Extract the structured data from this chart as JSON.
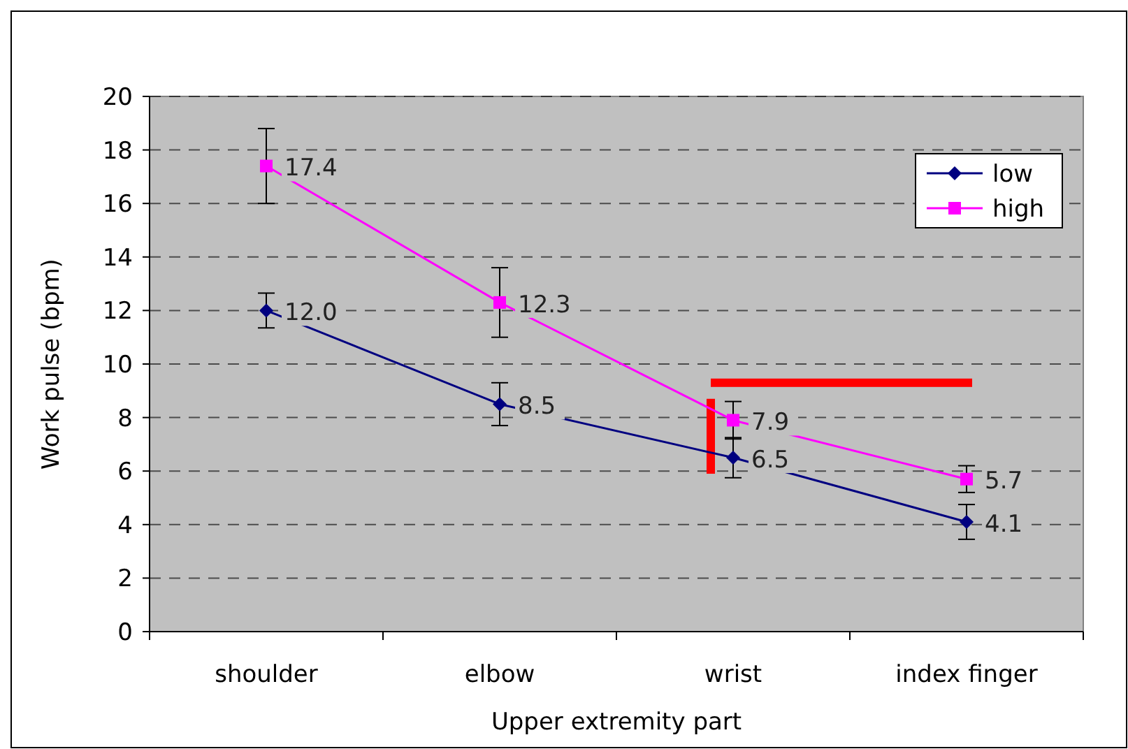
{
  "chart_data": {
    "type": "line",
    "xlabel": "Upper extremity part",
    "ylabel": "Work pulse (bpm)",
    "categories": [
      "shoulder",
      "elbow",
      "wrist",
      "index finger"
    ],
    "series": [
      {
        "name": "low",
        "color": "#000080",
        "marker": "diamond",
        "values": [
          12.0,
          8.5,
          6.5,
          4.1
        ],
        "errors": [
          0.65,
          0.8,
          0.75,
          0.65
        ],
        "value_labels": [
          "12.0",
          "8.5",
          "6.5",
          "4.1"
        ]
      },
      {
        "name": "high",
        "color": "#ff00ff",
        "marker": "square",
        "values": [
          17.4,
          12.3,
          7.9,
          5.7
        ],
        "errors": [
          1.4,
          1.3,
          0.7,
          0.5
        ],
        "value_labels": [
          "17.4",
          "12.3",
          "7.9",
          "5.7"
        ]
      }
    ],
    "ylim": [
      0,
      20
    ],
    "yticks": [
      0,
      2,
      4,
      6,
      8,
      10,
      12,
      14,
      16,
      18,
      20
    ],
    "grid": "y",
    "legend": "top right"
  }
}
